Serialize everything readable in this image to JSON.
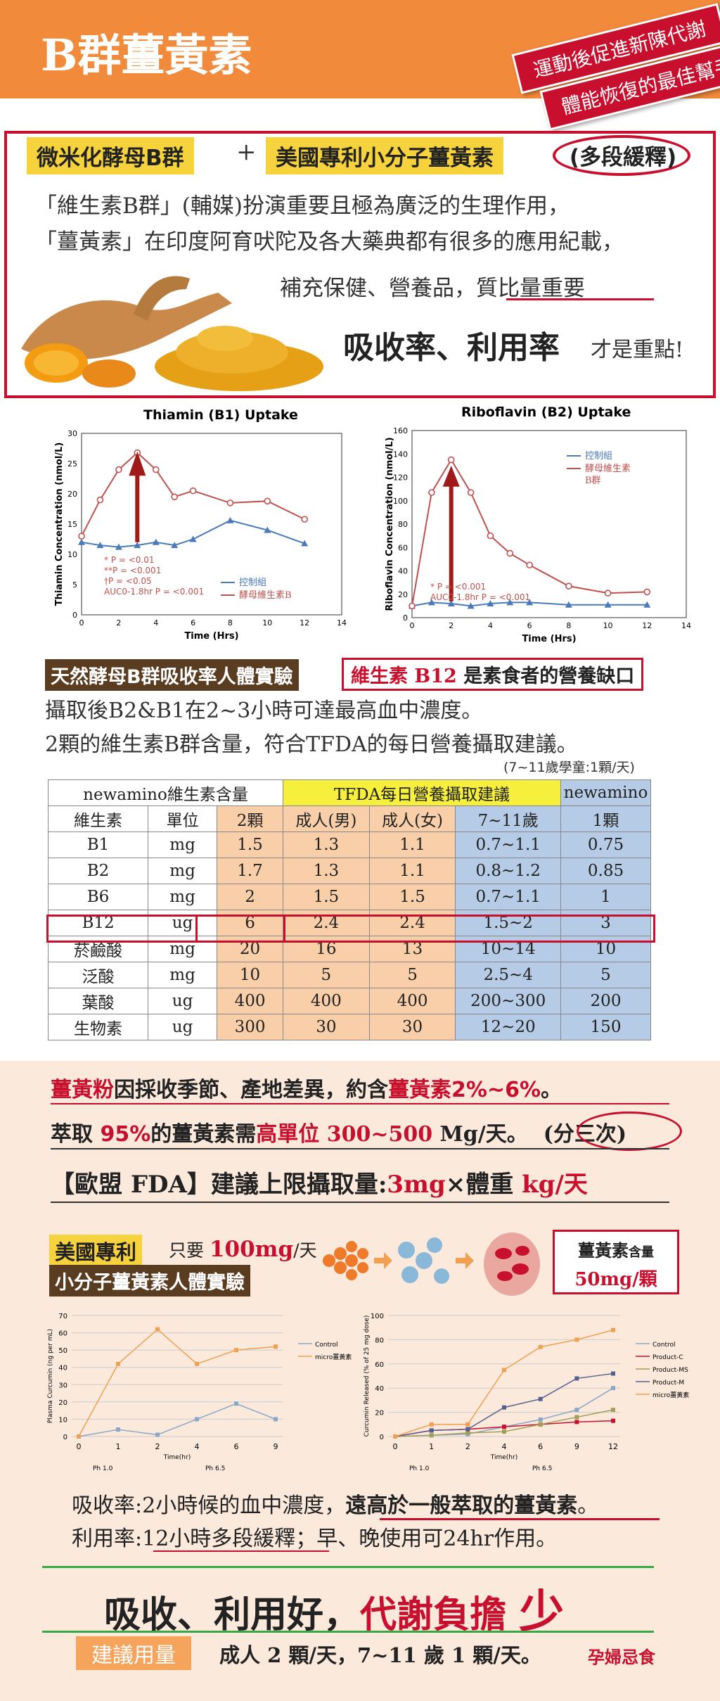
{
  "header": {
    "title": "B群薑黃素",
    "tag1": "運動後促進新陳代謝",
    "tag2": "體能恢復的最佳幫手"
  },
  "intro": {
    "label1": "微米化酵母B群",
    "plus": "+",
    "label2": "美國專利小分子薑黃素",
    "label3": "(多段緩釋)",
    "line1": "「維生素B群」(輔媒)扮演重要且極為廣泛的生理作用，",
    "line2": "「薑黃素」在印度阿育吠陀及各大藥典都有很多的應用紀載，",
    "line3": "補充保健、營養品，質比量重要",
    "line4": "吸收率、利用率",
    "line4b": "才是重點!"
  },
  "chart_data": [
    {
      "type": "line",
      "title": "Thiamin (B1) Uptake",
      "xlabel": "Time (Hrs)",
      "ylabel": "Thiamin Concentration (nmol/L)",
      "xlim": [
        0,
        14
      ],
      "ylim": [
        0,
        30
      ],
      "xticks": [
        0,
        2,
        4,
        6,
        8,
        10,
        12,
        14
      ],
      "yticks": [
        0,
        5,
        10,
        15,
        20,
        25,
        30
      ],
      "series": [
        {
          "name": "控制組",
          "color": "#4a7ab8",
          "x": [
            0,
            1,
            2,
            3,
            4,
            5,
            6,
            8,
            10,
            12
          ],
          "y": [
            12,
            11.5,
            11.2,
            11.5,
            12,
            11.5,
            12.5,
            15.6,
            14,
            11.8
          ]
        },
        {
          "name": "酵母維生素B",
          "color": "#c0504d",
          "x": [
            0,
            1,
            2,
            3,
            4,
            5,
            6,
            8,
            10,
            12
          ],
          "y": [
            13,
            19,
            24,
            26.8,
            24,
            19.5,
            20.5,
            18.5,
            18.8,
            15.8
          ]
        }
      ],
      "annotations": [
        "* P = <0.01",
        "**P = <0.001",
        "†P = <0.05",
        "AUC0-1.8hr P = <0.001"
      ]
    },
    {
      "type": "line",
      "title": "Riboflavin (B2) Uptake",
      "xlabel": "Time (Hrs)",
      "ylabel": "Riboflavin Concentration (nmol/L)",
      "xlim": [
        0,
        14
      ],
      "ylim": [
        0,
        160
      ],
      "xticks": [
        0,
        2,
        4,
        6,
        8,
        10,
        12,
        14
      ],
      "yticks": [
        0,
        20,
        40,
        60,
        80,
        100,
        120,
        140,
        160
      ],
      "series": [
        {
          "name": "控制組",
          "color": "#4a7ab8",
          "x": [
            0,
            1,
            2,
            3,
            4,
            5,
            6,
            8,
            10,
            12
          ],
          "y": [
            10,
            13,
            12,
            10,
            12,
            13,
            13,
            11,
            11,
            11
          ]
        },
        {
          "name": "酵母維生素B群",
          "color": "#c0504d",
          "x": [
            0,
            1,
            2,
            3,
            4,
            5,
            6,
            8,
            10,
            12
          ],
          "y": [
            10,
            107,
            135,
            107,
            70,
            55,
            45,
            27,
            21,
            22
          ]
        }
      ],
      "annotations": [
        "* P = <0.001",
        "AUC0-1.8hr P = <0.001"
      ]
    },
    {
      "type": "line",
      "xlabel": "Time(hr)",
      "ylabel": "Plasma Curcumin (ng per mL)",
      "ylim": [
        0,
        70
      ],
      "yticks": [
        0,
        10,
        20,
        30,
        40,
        50,
        60,
        70
      ],
      "categories": [
        "0",
        "1",
        "2",
        "4",
        "6",
        "9"
      ],
      "phase_labels": [
        "Ph 1.0",
        "Ph 6.5"
      ],
      "series": [
        {
          "name": "Control",
          "color": "#8aa7c7",
          "values": [
            0,
            4,
            1,
            10,
            19,
            10
          ]
        },
        {
          "name": "micro薑黃素",
          "color": "#f0a050",
          "values": [
            0,
            42,
            62,
            42,
            50,
            52
          ]
        }
      ]
    },
    {
      "type": "line",
      "xlabel": "Time(hr)",
      "ylabel": "Curcumin Released (% of 25 mg dose)",
      "ylim": [
        0,
        100
      ],
      "yticks": [
        0,
        20,
        40,
        60,
        80,
        100
      ],
      "categories": [
        "0",
        "1",
        "2",
        "4",
        "6",
        "9",
        "12"
      ],
      "phase_labels": [
        "Ph 1.0",
        "Ph 6.5"
      ],
      "series": [
        {
          "name": "Control",
          "color": "#8aa7c7",
          "values": [
            0,
            1,
            2,
            8,
            14,
            22,
            40
          ]
        },
        {
          "name": "Product-C",
          "color": "#c8102e",
          "values": [
            0,
            5,
            6,
            8,
            10,
            12,
            13
          ]
        },
        {
          "name": "Product-MS",
          "color": "#a0a05a",
          "values": [
            0,
            1,
            3,
            4,
            10,
            16,
            22
          ]
        },
        {
          "name": "Product-M",
          "color": "#556090",
          "values": [
            0,
            5,
            6,
            24,
            31,
            48,
            52
          ]
        },
        {
          "name": "micro薑黃素",
          "color": "#f0a050",
          "values": [
            0,
            10,
            10,
            55,
            74,
            80,
            88
          ]
        }
      ]
    }
  ],
  "b_section": {
    "badge": "天然酵母B群吸收率人體實驗",
    "b12_prefix": "維生素 B12",
    "b12_suffix": "是素食者的營養缺口",
    "text1": "攝取後B2&B1在2~3小時可達最高血中濃度。",
    "text2": "2顆的維生素B群含量，符合TFDA的每日營養攝取建議。",
    "note": "(7~11歲學童:1顆/天)"
  },
  "table": {
    "h1": "newamino維生素含量",
    "h2": "TFDA每日營養攝取建議",
    "h3": "newamino",
    "cols": [
      "維生素",
      "單位",
      "2顆",
      "成人(男)",
      "成人(女)",
      "7~11歲",
      "1顆"
    ],
    "rows": [
      [
        "B1",
        "mg",
        "1.5",
        "1.3",
        "1.1",
        "0.7~1.1",
        "0.75"
      ],
      [
        "B2",
        "mg",
        "1.7",
        "1.3",
        "1.1",
        "0.8~1.2",
        "0.85"
      ],
      [
        "B6",
        "mg",
        "2",
        "1.5",
        "1.5",
        "0.7~1.1",
        "1"
      ],
      [
        "B12",
        "ug",
        "6",
        "2.4",
        "2.4",
        "1.5~2",
        "3"
      ],
      [
        "菸鹼酸",
        "mg",
        "20",
        "16",
        "13",
        "10~14",
        "10"
      ],
      [
        "泛酸",
        "mg",
        "10",
        "5",
        "5",
        "2.5~4",
        "5"
      ],
      [
        "葉酸",
        "ug",
        "400",
        "400",
        "400",
        "200~300",
        "200"
      ],
      [
        "生物素",
        "ug",
        "300",
        "30",
        "30",
        "12~20",
        "150"
      ]
    ]
  },
  "curcumin": {
    "l1a": "薑黃粉",
    "l1b": "因採收季節、產地差異，約含",
    "l1c": "薑黃素2%~6%",
    "l1d": "。",
    "l2a": "萃取",
    "l2b": "95%",
    "l2c": "的薑黃素需",
    "l2d": "高單位 300~500",
    "l2e": "Mg/天。",
    "l2f": "(分三次)",
    "l3a": "【歐盟 FDA】建議上限攝取量:",
    "l3b": "3mg",
    "l3c": "×體重",
    "l3d": "kg/天",
    "patent": "美國專利",
    "only": "只要",
    "dose": "100mg",
    "per_day": "/天",
    "exp": "小分子薑黃素人體實驗",
    "box1": "薑黃素",
    "box1b": "含量",
    "box2": "50mg/顆"
  },
  "summary": {
    "a1": "吸收率:2小時候的血中濃度，",
    "a1b": "遠高於一般萃取的薑黃素",
    "a1c": "。",
    "a2": "利用率:",
    "a2b": "12小時多段緩釋",
    "a2c": "；早、晚使用可24hr作用。",
    "big1": "吸收、利用好，",
    "big2": "代謝負擔",
    "big3": "少",
    "rec_label": "建議用量",
    "rec_text": "成人 2 顆/天，7~11 歲 1 顆/天。",
    "rec_warn": "孕婦忌食"
  }
}
